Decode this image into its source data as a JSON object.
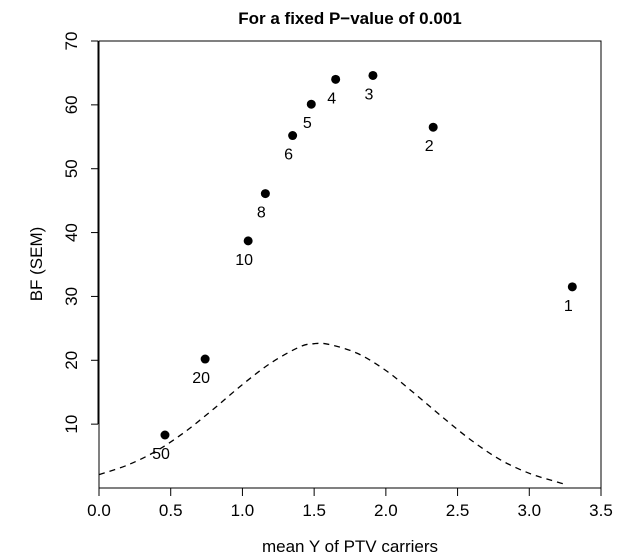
{
  "chart_data": {
    "type": "scatter",
    "title": "For a fixed P−value of 0.001",
    "xlabel": "mean Y of PTV carriers",
    "ylabel": "BF (SEM)",
    "xlim": [
      0,
      3.5
    ],
    "ylim": [
      0,
      70
    ],
    "xticks": [
      "0.0",
      "0.5",
      "1.0",
      "1.5",
      "2.0",
      "2.5",
      "3.0",
      "3.5"
    ],
    "yticks": [
      "10",
      "20",
      "30",
      "40",
      "50",
      "60",
      "70"
    ],
    "grid": false,
    "points": [
      {
        "label": "50",
        "x": 0.46,
        "y": 8.3
      },
      {
        "label": "20",
        "x": 0.74,
        "y": 20.2
      },
      {
        "label": "10",
        "x": 1.04,
        "y": 38.7
      },
      {
        "label": "8",
        "x": 1.16,
        "y": 46.1
      },
      {
        "label": "6",
        "x": 1.35,
        "y": 55.2
      },
      {
        "label": "5",
        "x": 1.48,
        "y": 60.1
      },
      {
        "label": "4",
        "x": 1.65,
        "y": 64.0
      },
      {
        "label": "3",
        "x": 1.91,
        "y": 64.6
      },
      {
        "label": "2",
        "x": 2.33,
        "y": 56.5
      },
      {
        "label": "1",
        "x": 3.3,
        "y": 31.5
      }
    ],
    "reference_curve": {
      "style": "dashed",
      "shape": "bell",
      "x": [
        0.0,
        0.2,
        0.4,
        0.6,
        0.8,
        1.0,
        1.2,
        1.4,
        1.5,
        1.6,
        1.8,
        2.0,
        2.2,
        2.4,
        2.6,
        2.8,
        3.0,
        3.2,
        3.25
      ],
      "y": [
        2.1,
        3.6,
        5.8,
        8.8,
        12.4,
        16.2,
        19.6,
        22.1,
        22.6,
        22.5,
        21.1,
        18.4,
        14.8,
        11.0,
        7.4,
        4.4,
        2.3,
        0.9,
        0.6
      ]
    }
  }
}
